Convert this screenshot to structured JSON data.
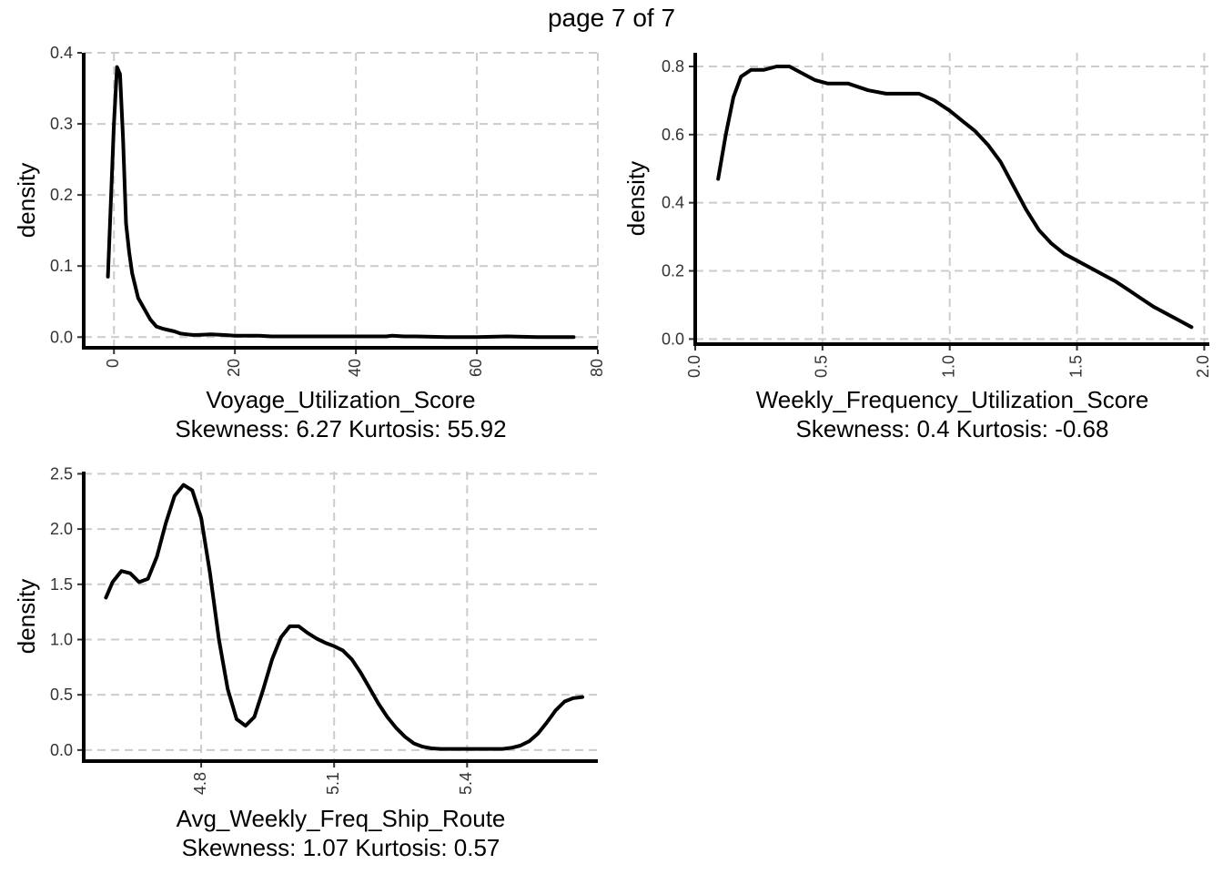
{
  "page_title": "page 7 of 7",
  "chart_data": [
    {
      "type": "line",
      "xlabel": "Voyage_Utilization_Score",
      "subtitle": "Skewness: 6.27 Kurtosis: 55.92",
      "ylabel": "density",
      "xlim": [
        -5,
        80
      ],
      "ylim": [
        -0.015,
        0.4
      ],
      "x_ticks": [
        0,
        20,
        40,
        60,
        80
      ],
      "x_tick_labels": [
        "0",
        "20",
        "40",
        "60",
        "80"
      ],
      "x_tick_rotate": true,
      "y_ticks": [
        0.0,
        0.1,
        0.2,
        0.3,
        0.4
      ],
      "y_tick_labels": [
        "0.0",
        "0.1",
        "0.2",
        "0.3",
        "0.4"
      ],
      "grid": true,
      "series": [
        {
          "x": [
            -1,
            0,
            0.5,
            1,
            1.5,
            2,
            2.5,
            3,
            4,
            5,
            6,
            7,
            8,
            9,
            10,
            11,
            12,
            13,
            14,
            16,
            18,
            20,
            22,
            24,
            26,
            28,
            30,
            32,
            35,
            40,
            45,
            46,
            48,
            50,
            55,
            60,
            65,
            70,
            76
          ],
          "y": [
            0.085,
            0.3,
            0.38,
            0.37,
            0.28,
            0.16,
            0.12,
            0.09,
            0.055,
            0.04,
            0.025,
            0.015,
            0.012,
            0.01,
            0.008,
            0.005,
            0.004,
            0.003,
            0.003,
            0.004,
            0.003,
            0.002,
            0.002,
            0.002,
            0.001,
            0.001,
            0.001,
            0.001,
            0.001,
            0.001,
            0.001,
            0.002,
            0.001,
            0.001,
            0.0,
            0.0,
            0.001,
            0.0,
            0.0
          ]
        }
      ]
    },
    {
      "type": "line",
      "xlabel": "Weekly_Frequency_Utilization_Score",
      "subtitle": "Skewness: 0.4 Kurtosis: -0.68",
      "ylabel": "density",
      "xlim": [
        0.0,
        2.02
      ],
      "ylim": [
        -0.015,
        0.84
      ],
      "x_ticks": [
        0.0,
        0.5,
        1.0,
        1.5,
        2.0
      ],
      "x_tick_labels": [
        "0.0",
        "0.5",
        "1.0",
        "1.5",
        "2.0"
      ],
      "x_tick_rotate": true,
      "y_ticks": [
        0.0,
        0.2,
        0.4,
        0.6,
        0.8
      ],
      "y_tick_labels": [
        "0.0",
        "0.2",
        "0.4",
        "0.6",
        "0.8"
      ],
      "grid": true,
      "series": [
        {
          "x": [
            0.09,
            0.12,
            0.15,
            0.18,
            0.22,
            0.27,
            0.32,
            0.37,
            0.42,
            0.47,
            0.52,
            0.6,
            0.68,
            0.75,
            0.82,
            0.88,
            0.94,
            1.0,
            1.05,
            1.1,
            1.15,
            1.2,
            1.25,
            1.3,
            1.35,
            1.4,
            1.45,
            1.5,
            1.55,
            1.6,
            1.65,
            1.7,
            1.75,
            1.8,
            1.85,
            1.9,
            1.95
          ],
          "y": [
            0.47,
            0.6,
            0.71,
            0.77,
            0.79,
            0.79,
            0.8,
            0.8,
            0.78,
            0.76,
            0.75,
            0.75,
            0.73,
            0.72,
            0.72,
            0.72,
            0.7,
            0.67,
            0.64,
            0.61,
            0.57,
            0.52,
            0.45,
            0.38,
            0.32,
            0.28,
            0.25,
            0.23,
            0.21,
            0.19,
            0.17,
            0.145,
            0.12,
            0.095,
            0.075,
            0.055,
            0.035
          ]
        }
      ]
    },
    {
      "type": "line",
      "xlabel": "Avg_Weekly_Freq_Ship_Route",
      "subtitle": "Skewness: 1.07 Kurtosis: 0.57",
      "ylabel": "density",
      "xlim": [
        4.535,
        5.695
      ],
      "ylim": [
        -0.1,
        2.52
      ],
      "x_ticks": [
        4.8,
        5.1,
        5.4
      ],
      "x_tick_labels": [
        "4.8",
        "5.1",
        "5.4"
      ],
      "x_tick_rotate": true,
      "y_ticks": [
        0.0,
        0.5,
        1.0,
        1.5,
        2.0,
        2.5
      ],
      "y_tick_labels": [
        "0.0",
        "0.5",
        "1.0",
        "1.5",
        "2.0",
        "2.5"
      ],
      "grid": true,
      "series": [
        {
          "x": [
            4.585,
            4.6,
            4.62,
            4.64,
            4.66,
            4.68,
            4.7,
            4.72,
            4.74,
            4.76,
            4.78,
            4.8,
            4.82,
            4.84,
            4.86,
            4.88,
            4.9,
            4.92,
            4.94,
            4.96,
            4.98,
            5.0,
            5.02,
            5.04,
            5.06,
            5.08,
            5.1,
            5.12,
            5.14,
            5.16,
            5.18,
            5.2,
            5.22,
            5.24,
            5.26,
            5.28,
            5.3,
            5.32,
            5.34,
            5.36,
            5.38,
            5.4,
            5.42,
            5.44,
            5.46,
            5.48,
            5.5,
            5.52,
            5.54,
            5.56,
            5.58,
            5.6,
            5.62,
            5.64,
            5.66
          ],
          "y": [
            1.38,
            1.52,
            1.62,
            1.6,
            1.52,
            1.55,
            1.75,
            2.05,
            2.3,
            2.4,
            2.35,
            2.1,
            1.6,
            1.0,
            0.55,
            0.28,
            0.22,
            0.3,
            0.55,
            0.82,
            1.02,
            1.12,
            1.12,
            1.06,
            1.01,
            0.97,
            0.94,
            0.9,
            0.82,
            0.7,
            0.56,
            0.42,
            0.3,
            0.2,
            0.12,
            0.06,
            0.03,
            0.015,
            0.01,
            0.01,
            0.01,
            0.01,
            0.01,
            0.01,
            0.01,
            0.01,
            0.02,
            0.04,
            0.08,
            0.15,
            0.25,
            0.36,
            0.44,
            0.47,
            0.48
          ]
        }
      ]
    }
  ]
}
